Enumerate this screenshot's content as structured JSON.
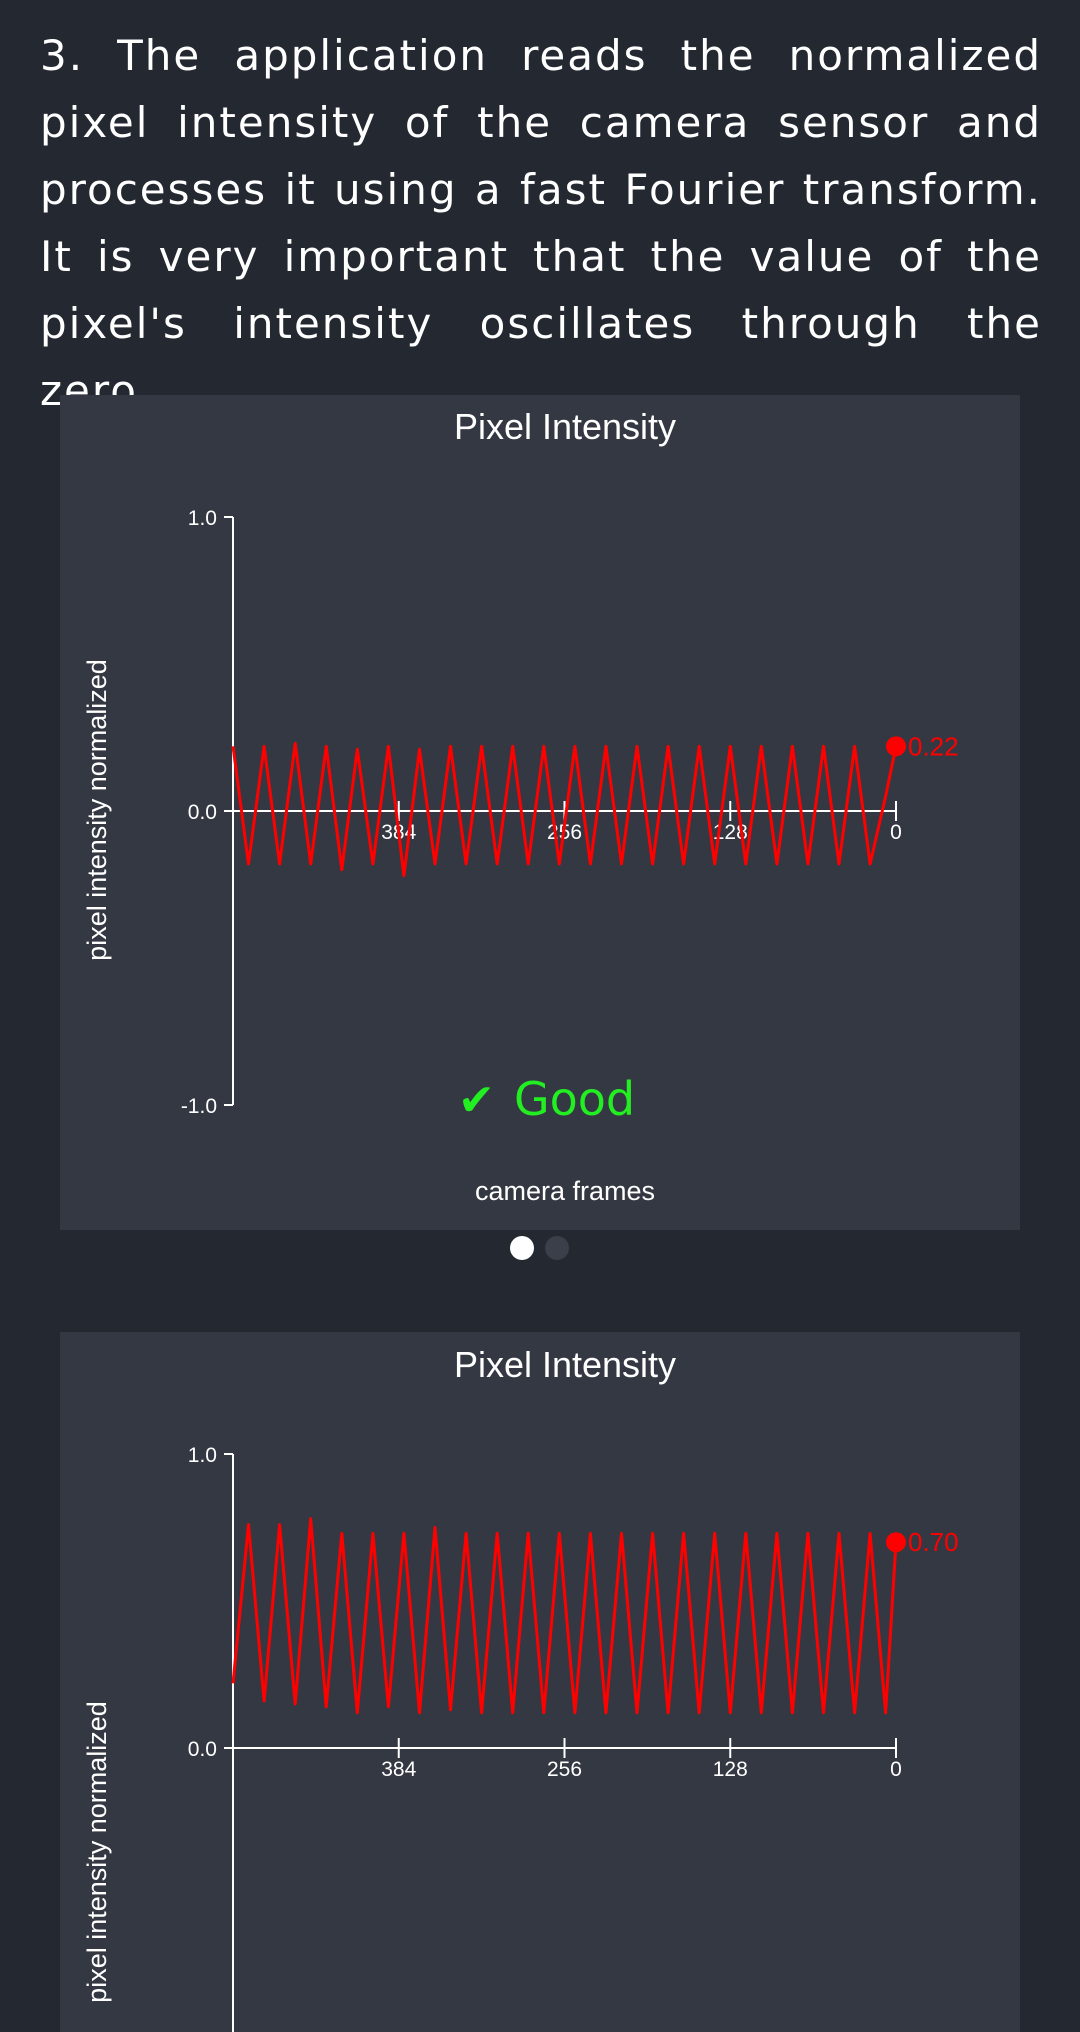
{
  "intro": "3. The application reads the normalized pixel intensity of the camera sensor and processes it using a fast Fourier transform. It is very important that the value of the pixel's intensity oscillates through the zero.",
  "colors": {
    "background": "#232831",
    "card": "#343842",
    "series": "#ff0000",
    "good": "#22ee22",
    "axis": "#ffffff"
  },
  "pager": {
    "active_index": 0,
    "count": 2
  },
  "chart_data": [
    {
      "type": "line",
      "title": "Pixel Intensity",
      "xlabel": "camera frames",
      "ylabel": "pixel intensity normalized",
      "xlim": [
        512,
        0
      ],
      "ylim": [
        -1.0,
        1.0
      ],
      "x_reversed": true,
      "x_ticks": [
        "384",
        "256",
        "128",
        "0"
      ],
      "y_ticks": [
        "1.0",
        "0.0",
        "-1.0"
      ],
      "grid": false,
      "status": {
        "icon": "checkmark-icon",
        "text": "Good"
      },
      "last_value_label": "0.22",
      "series": [
        {
          "color": "#ff0000",
          "x": [
            512,
            500,
            488,
            476,
            464,
            452,
            440,
            428,
            416,
            404,
            392,
            380,
            368,
            356,
            344,
            332,
            320,
            308,
            296,
            284,
            272,
            260,
            248,
            236,
            224,
            212,
            200,
            188,
            176,
            164,
            152,
            140,
            128,
            116,
            104,
            92,
            80,
            68,
            56,
            44,
            32,
            20,
            8,
            0
          ],
          "y": [
            0.22,
            -0.18,
            0.22,
            -0.18,
            0.23,
            -0.18,
            0.22,
            -0.2,
            0.21,
            -0.18,
            0.22,
            -0.22,
            0.21,
            -0.18,
            0.22,
            -0.18,
            0.22,
            -0.18,
            0.22,
            -0.18,
            0.22,
            -0.18,
            0.22,
            -0.18,
            0.22,
            -0.18,
            0.22,
            -0.18,
            0.22,
            -0.18,
            0.22,
            -0.18,
            0.22,
            -0.18,
            0.22,
            -0.18,
            0.22,
            -0.18,
            0.22,
            -0.18,
            0.22,
            -0.18,
            0.05,
            0.22
          ]
        }
      ]
    },
    {
      "type": "line",
      "title": "Pixel Intensity",
      "xlabel": "",
      "ylabel": "pixel intensity normalized",
      "xlim": [
        512,
        0
      ],
      "ylim": [
        -1.0,
        1.0
      ],
      "x_reversed": true,
      "x_ticks": [
        "384",
        "256",
        "128",
        "0"
      ],
      "y_ticks": [
        "1.0",
        "0.0"
      ],
      "grid": false,
      "last_value_label": "0.70",
      "series": [
        {
          "color": "#ff0000",
          "x": [
            512,
            500,
            488,
            476,
            464,
            452,
            440,
            428,
            416,
            404,
            392,
            380,
            368,
            356,
            344,
            332,
            320,
            308,
            296,
            284,
            272,
            260,
            248,
            236,
            224,
            212,
            200,
            188,
            176,
            164,
            152,
            140,
            128,
            116,
            104,
            92,
            80,
            68,
            56,
            44,
            32,
            20,
            8,
            0
          ],
          "y": [
            0.22,
            0.76,
            0.16,
            0.76,
            0.15,
            0.78,
            0.14,
            0.73,
            0.12,
            0.73,
            0.14,
            0.73,
            0.12,
            0.75,
            0.13,
            0.73,
            0.12,
            0.73,
            0.12,
            0.73,
            0.12,
            0.73,
            0.12,
            0.73,
            0.12,
            0.73,
            0.12,
            0.73,
            0.12,
            0.73,
            0.12,
            0.73,
            0.12,
            0.73,
            0.12,
            0.73,
            0.12,
            0.73,
            0.12,
            0.73,
            0.12,
            0.73,
            0.12,
            0.7
          ]
        }
      ]
    }
  ]
}
